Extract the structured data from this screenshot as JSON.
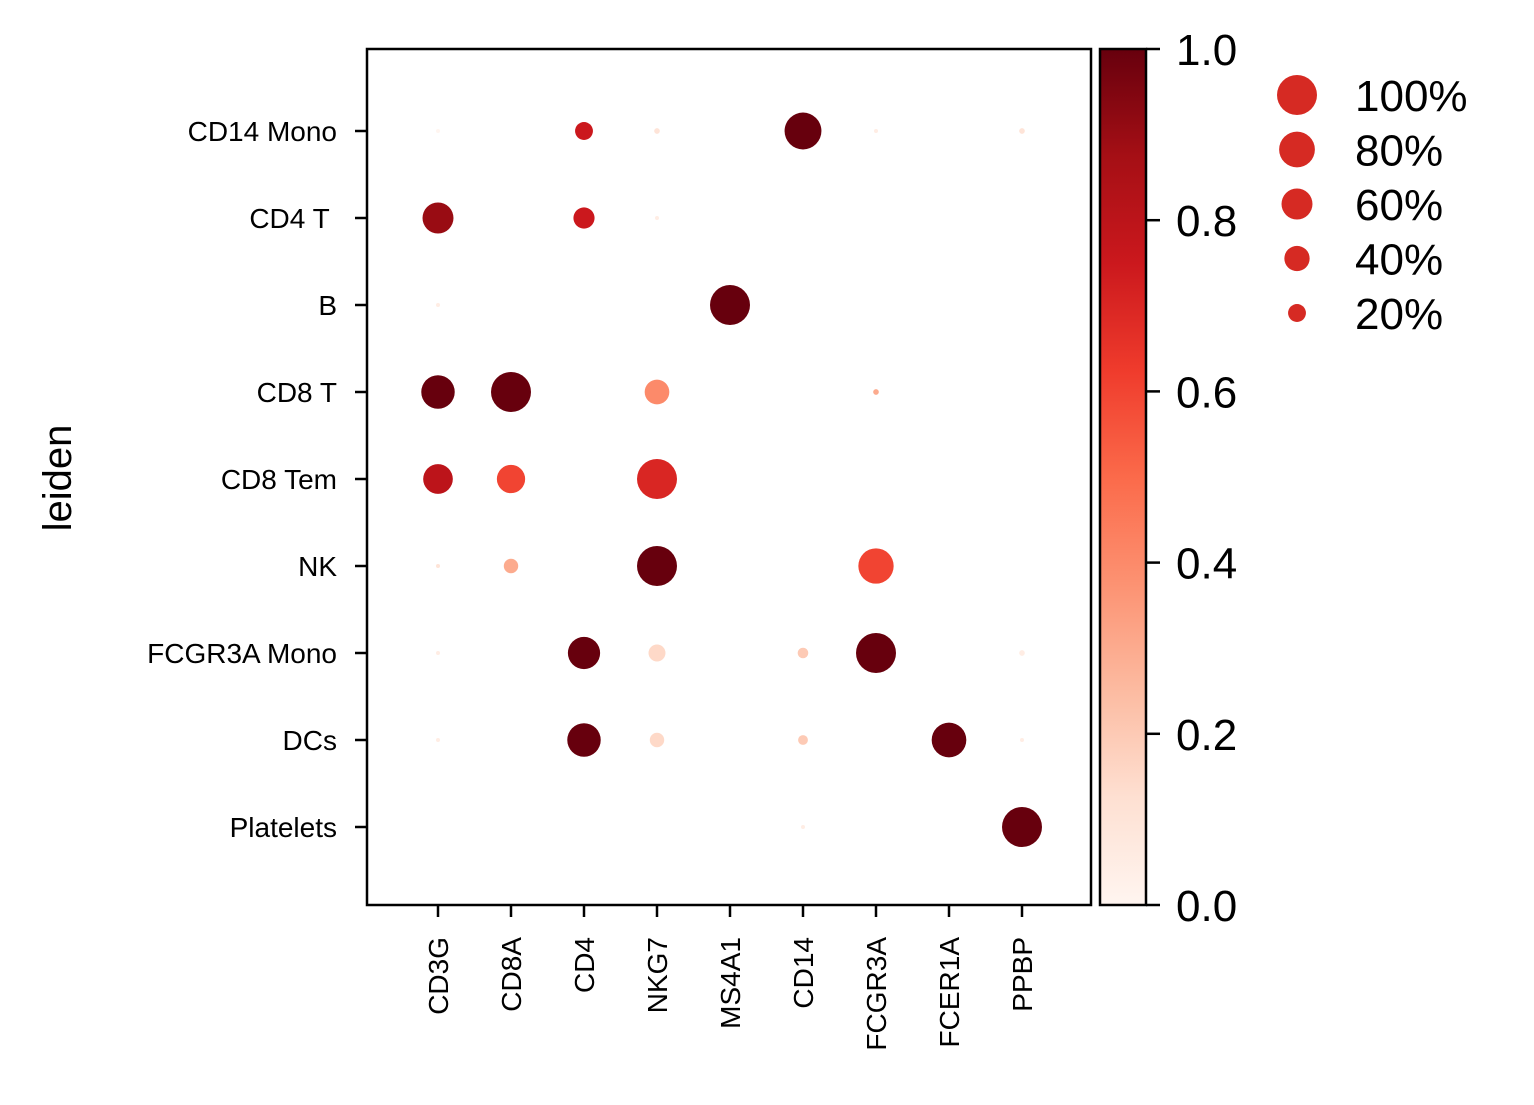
{
  "chart_data": {
    "type": "dotplot",
    "ylabel": "leiden",
    "genes": [
      "CD3G",
      "CD8A",
      "CD4",
      "NKG7",
      "MS4A1",
      "CD14",
      "FCGR3A",
      "FCER1A",
      "PPBP"
    ],
    "groups": [
      "CD14 Mono",
      "CD4 T ",
      "B",
      "CD8 T",
      "CD8 Tem",
      "NK",
      "FCGR3A Mono",
      "DCs",
      "Platelets"
    ],
    "fraction_expressing": [
      [
        0.01,
        0.0,
        0.2,
        0.02,
        0.0,
        0.85,
        0.01,
        0.0,
        0.02
      ],
      [
        0.6,
        0.0,
        0.28,
        0.01,
        0.0,
        0.0,
        0.0,
        0.0,
        0.0
      ],
      [
        0.01,
        0.0,
        0.0,
        0.0,
        1.0,
        0.0,
        0.0,
        0.0,
        0.0
      ],
      [
        0.7,
        1.0,
        0.0,
        0.38,
        0.0,
        0.0,
        0.02,
        0.0,
        0.0
      ],
      [
        0.55,
        0.5,
        0.0,
        1.0,
        0.0,
        0.0,
        0.0,
        0.0,
        0.0
      ],
      [
        0.01,
        0.13,
        0.0,
        1.0,
        0.0,
        0.0,
        0.78,
        0.0,
        0.0
      ],
      [
        0.01,
        0.0,
        0.65,
        0.18,
        0.0,
        0.07,
        1.0,
        0.0,
        0.02
      ],
      [
        0.01,
        0.0,
        0.7,
        0.13,
        0.0,
        0.06,
        0.0,
        0.75,
        0.01
      ],
      [
        0.0,
        0.0,
        0.0,
        0.0,
        0.0,
        0.01,
        0.0,
        0.0,
        1.0
      ]
    ],
    "mean_expression": [
      [
        0.0,
        0.0,
        0.75,
        0.1,
        0.0,
        1.0,
        0.05,
        0.0,
        0.1
      ],
      [
        0.9,
        0.0,
        0.75,
        0.05,
        0.0,
        0.0,
        0.0,
        0.0,
        0.0
      ],
      [
        0.05,
        0.0,
        0.0,
        0.0,
        1.0,
        0.0,
        0.0,
        0.0,
        0.0
      ],
      [
        1.0,
        1.0,
        0.0,
        0.4,
        0.0,
        0.0,
        0.3,
        0.0,
        0.0
      ],
      [
        0.8,
        0.6,
        0.0,
        0.7,
        0.0,
        0.0,
        0.0,
        0.0,
        0.0
      ],
      [
        0.1,
        0.3,
        0.0,
        1.0,
        0.0,
        0.0,
        0.6,
        0.0,
        0.0
      ],
      [
        0.05,
        0.0,
        1.0,
        0.15,
        0.0,
        0.2,
        1.0,
        0.0,
        0.05
      ],
      [
        0.05,
        0.0,
        1.0,
        0.15,
        0.0,
        0.2,
        0.0,
        1.0,
        0.05
      ],
      [
        0.0,
        0.0,
        0.0,
        0.0,
        0.0,
        0.05,
        0.0,
        0.0,
        1.0
      ]
    ],
    "colorbar": {
      "range": [
        0.0,
        1.0
      ],
      "ticks": [
        "0.0",
        "0.2",
        "0.4",
        "0.6",
        "0.8",
        "1.0"
      ],
      "colormap": "Reds"
    },
    "size_legend": {
      "labels": [
        "100%",
        "80%",
        "60%",
        "40%",
        "20%"
      ],
      "fractions": [
        1.0,
        0.8,
        0.6,
        0.4,
        0.2
      ],
      "color": "#d62a23"
    },
    "colors": {
      "reds": [
        "#fff5f0",
        "#fee0d2",
        "#fcbba1",
        "#fc9272",
        "#fb6a4a",
        "#ef3b2c",
        "#cb181d",
        "#a50f15",
        "#67000d"
      ]
    }
  }
}
